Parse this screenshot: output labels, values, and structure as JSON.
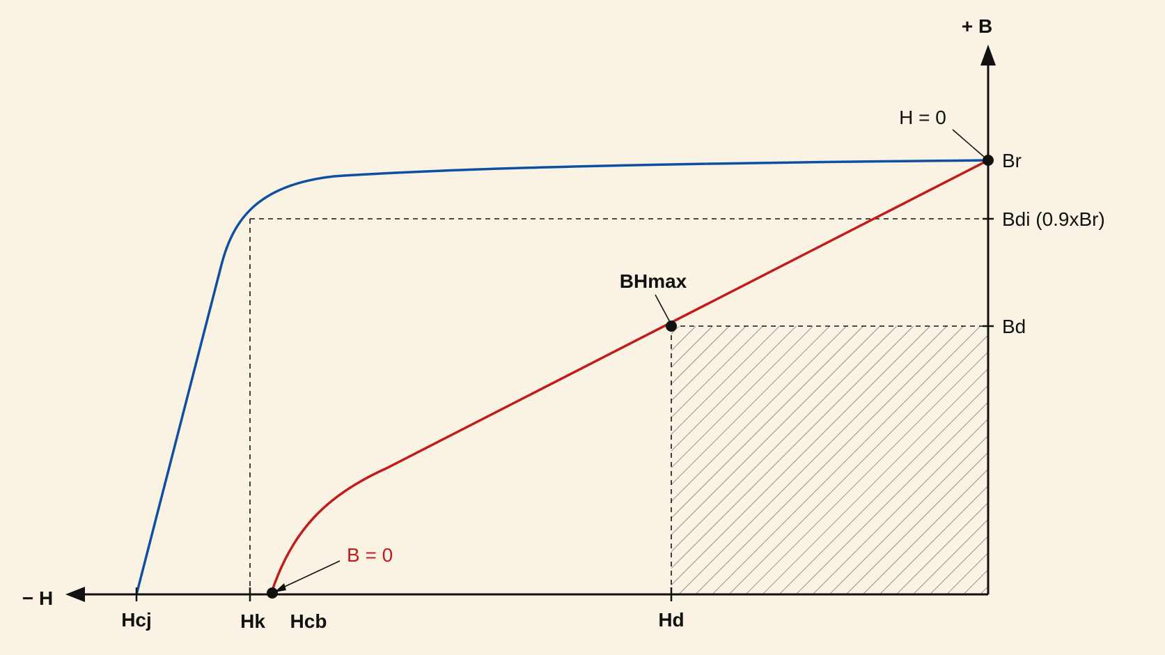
{
  "axes": {
    "b_axis_label": "+ B",
    "h_axis_label": "− H"
  },
  "labels": {
    "br": "Br",
    "bdi": "Bdi (0.9xBr)",
    "bd": "Bd",
    "h_zero": "H = 0",
    "b_zero": "B = 0",
    "bhmax": "BHmax",
    "hcj": "Hcj",
    "hk": "Hk",
    "hcb": "Hcb",
    "hd": "Hd"
  },
  "colors": {
    "background": "#faf3e3",
    "intrinsic_curve": "#0d4fa3",
    "normal_curve": "#c01c1c",
    "axis": "#111111",
    "hatch": "#7a7a7a"
  }
}
